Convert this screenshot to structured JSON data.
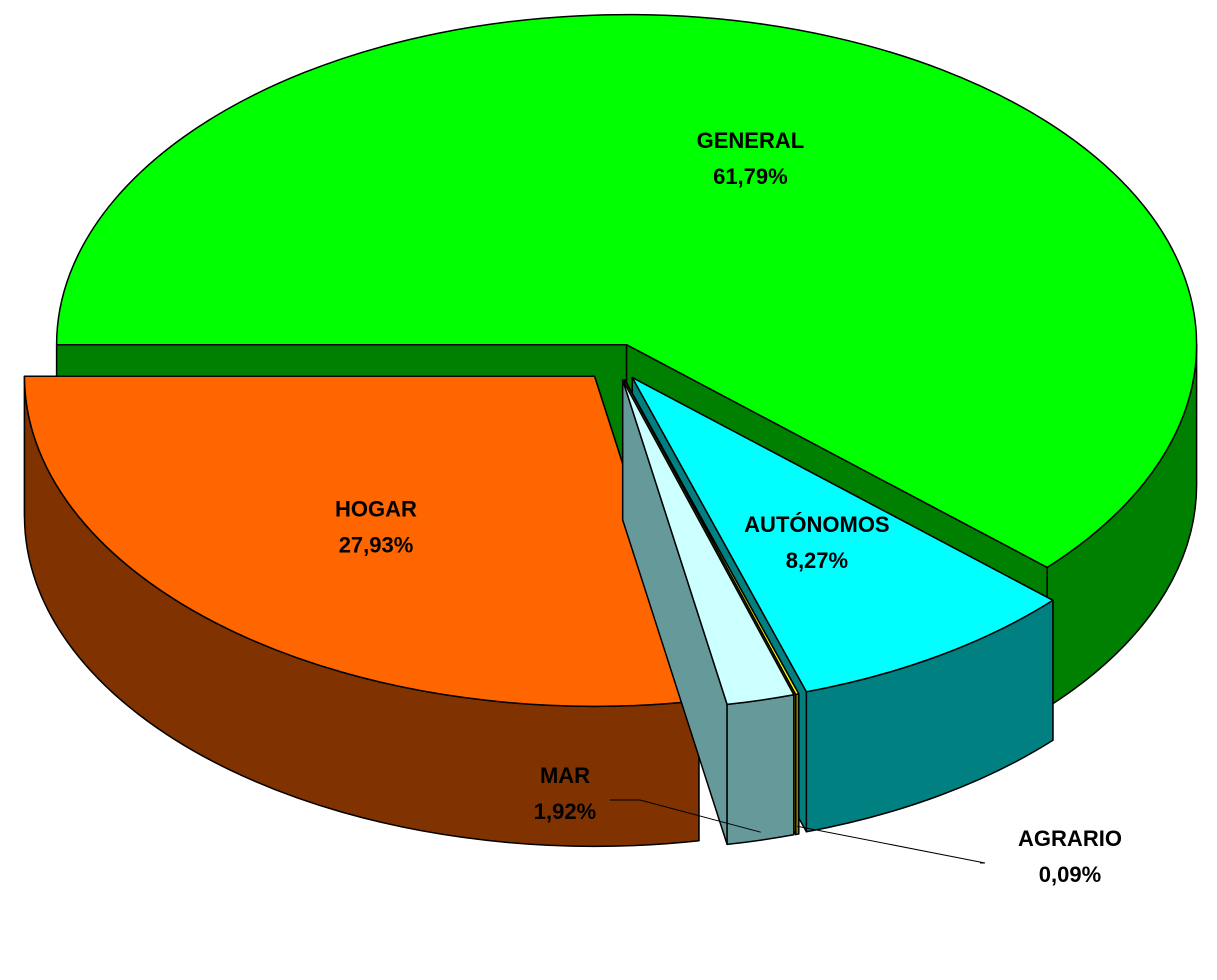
{
  "chart_data": {
    "type": "pie",
    "categories": [
      "GENERAL",
      "AUTÓNOMOS",
      "AGRARIO",
      "MAR",
      "HOGAR"
    ],
    "values": [
      61.79,
      8.27,
      0.09,
      1.92,
      27.93
    ],
    "value_labels": [
      "61,79%",
      "8,27%",
      "0,09%",
      "1,92%",
      "27,93%"
    ],
    "colors": [
      "#00ff00",
      "#00ffff",
      "#ffff00",
      "#ccffff",
      "#ff6600"
    ],
    "side_colors": [
      "#008000",
      "#008080",
      "#808000",
      "#669999",
      "#803300"
    ]
  }
}
